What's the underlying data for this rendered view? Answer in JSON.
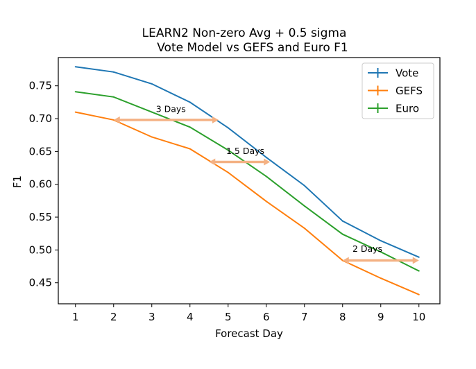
{
  "chart_data": {
    "type": "line",
    "title": "LEARN2 Non-zero Avg + 0.5 sigma",
    "subtitle": "Vote Model vs GEFS and Euro F1",
    "xlabel": "Forecast Day",
    "ylabel": "F1",
    "x": [
      1,
      2,
      3,
      4,
      5,
      6,
      7,
      8,
      9,
      10
    ],
    "xticks": [
      "1",
      "2",
      "3",
      "4",
      "5",
      "6",
      "7",
      "8",
      "9",
      "10"
    ],
    "yticks": [
      "0.45",
      "0.50",
      "0.55",
      "0.60",
      "0.65",
      "0.70",
      "0.75"
    ],
    "xlim": [
      0.55,
      10.55
    ],
    "ylim": [
      0.418,
      0.793
    ],
    "grid": false,
    "legend_position": "top-right",
    "series": [
      {
        "name": "Vote",
        "color": "#1f77b4",
        "values": [
          0.779,
          0.771,
          0.753,
          0.725,
          0.686,
          0.641,
          0.598,
          0.544,
          0.514,
          0.489
        ]
      },
      {
        "name": "GEFS",
        "color": "#ff7f0e",
        "values": [
          0.71,
          0.698,
          0.672,
          0.654,
          0.618,
          0.574,
          0.533,
          0.484,
          0.457,
          0.432
        ]
      },
      {
        "name": "Euro",
        "color": "#2ca02c",
        "values": [
          0.741,
          0.733,
          0.71,
          0.687,
          0.652,
          0.612,
          0.567,
          0.524,
          0.497,
          0.468
        ]
      }
    ],
    "annotations": [
      {
        "text": "3 Days",
        "x1": 2.0,
        "x2": 4.75,
        "y": 0.698,
        "label_x": 3.5,
        "label_y": 0.71
      },
      {
        "text": "1.5 Days",
        "x1": 4.5,
        "x2": 6.1,
        "y": 0.634,
        "label_x": 5.45,
        "label_y": 0.646
      },
      {
        "text": "2 Days",
        "x1": 8.0,
        "x2": 10.0,
        "y": 0.484,
        "label_x": 8.65,
        "label_y": 0.497
      }
    ],
    "annotation_color": "#f4b183"
  }
}
